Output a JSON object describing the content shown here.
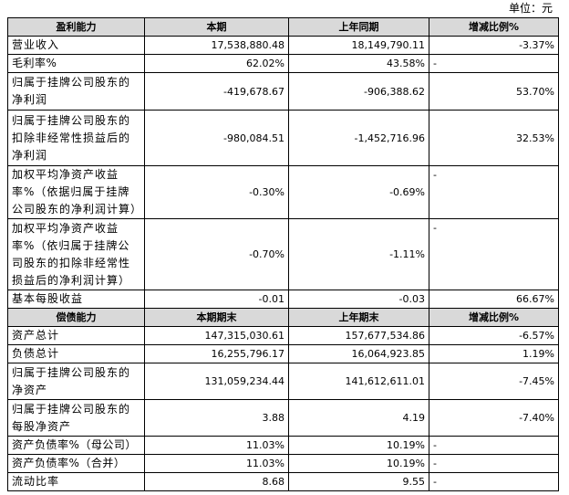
{
  "unit_label": "单位：元",
  "sections": [
    {
      "header": [
        "盈利能力",
        "本期",
        "上年同期",
        "增减比例%"
      ],
      "rows": [
        {
          "label": "营业收入",
          "current": "17,538,880.48",
          "previous": "18,149,790.11",
          "change": "-3.37%"
        },
        {
          "label": "毛利率%",
          "current": "62.02%",
          "previous": "43.58%",
          "change": "-"
        },
        {
          "label": "归属于挂牌公司股东的净利润",
          "current": "-419,678.67",
          "previous": "-906,388.62",
          "change": "53.70%"
        },
        {
          "label": "归属于挂牌公司股东的扣除非经常性损益后的净利润",
          "current": "-980,084.51",
          "previous": "-1,452,716.96",
          "change": "32.53%"
        },
        {
          "label": "加权平均净资产收益率%（依据归属于挂牌公司股东的净利润计算）",
          "current": "-0.30%",
          "previous": "-0.69%",
          "change": "-"
        },
        {
          "label": "加权平均净资产收益率%（依归属于挂牌公司股东的扣除非经常性损益后的净利润计算）",
          "current": "-0.70%",
          "previous": "-1.11%",
          "change": "-"
        },
        {
          "label": "基本每股收益",
          "current": "-0.01",
          "previous": "-0.03",
          "change": "66.67%"
        }
      ]
    },
    {
      "header": [
        "偿债能力",
        "本期期末",
        "上年期末",
        "增减比例%"
      ],
      "rows": [
        {
          "label": "资产总计",
          "current": "147,315,030.61",
          "previous": "157,677,534.86",
          "change": "-6.57%"
        },
        {
          "label": "负债总计",
          "current": "16,255,796.17",
          "previous": "16,064,923.85",
          "change": "1.19%"
        },
        {
          "label": "归属于挂牌公司股东的净资产",
          "current": "131,059,234.44",
          "previous": "141,612,611.01",
          "change": "-7.45%"
        },
        {
          "label": "归属于挂牌公司股东的每股净资产",
          "current": "3.88",
          "previous": "4.19",
          "change": "-7.40%"
        },
        {
          "label": "资产负债率%（母公司）",
          "current": "11.03%",
          "previous": "10.19%",
          "change": "-"
        },
        {
          "label": "资产负债率%（合并）",
          "current": "11.03%",
          "previous": "10.19%",
          "change": "-"
        },
        {
          "label": "流动比率",
          "current": "8.68",
          "previous": "9.55",
          "change": "-"
        }
      ]
    }
  ]
}
